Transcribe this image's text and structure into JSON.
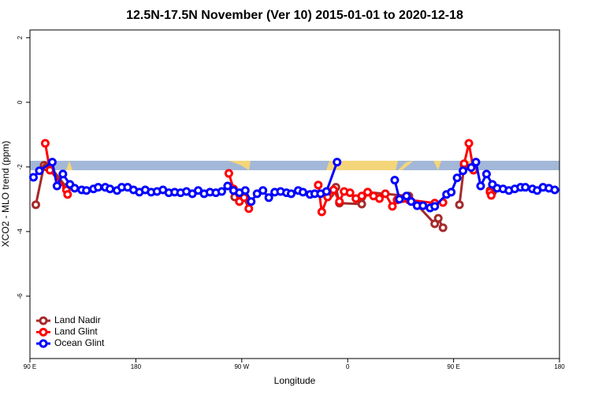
{
  "chart_data": {
    "type": "line",
    "title": "12.5N-17.5N November (Ver 10)   2015-01-01 to 2020-12-18",
    "x_label": "Longitude",
    "y_label": "XCO2 - MLO trend (ppm)",
    "xlim": [
      90,
      540
    ],
    "ylim": [
      -7.93,
      2.24
    ],
    "xticks": [
      {
        "value": 90,
        "label": "90 E"
      },
      180,
      {
        "value": 270,
        "label": "90 W"
      },
      {
        "value": 360,
        "label": "0"
      },
      {
        "value": 450,
        "label": "90 E"
      },
      {
        "value": 540,
        "label": "180"
      }
    ],
    "yticks": [
      -6,
      -4,
      -2,
      0,
      2
    ],
    "legend": "bottom-left",
    "series": [
      {
        "name": "Land Nadir",
        "color": "#a52a2a",
        "x": [
          95,
          102,
          104,
          107,
          121,
          null,
          264,
          268,
          null,
          345,
          350,
          353,
          372,
          377,
          412,
          434,
          437,
          441,
          null,
          455,
          459,
          467,
          null,
          481,
          483
        ],
        "values": [
          -3.17,
          -1.95,
          -2.0,
          -1.98,
          -2.63,
          null,
          -2.93,
          -3.07,
          null,
          -2.83,
          -2.63,
          -3.12,
          -3.15,
          -2.78,
          -2.9,
          -3.76,
          -3.59,
          -3.88,
          null,
          -3.17,
          -1.95,
          -2.05,
          null,
          -2.73,
          -2.78
        ]
      },
      {
        "name": "Land Glint",
        "color": "#ff0000",
        "x": [
          103,
          107,
          121,
          122,
          null,
          259,
          263,
          268,
          272,
          276,
          null,
          335,
          338,
          343,
          348,
          353,
          357,
          362,
          367,
          372,
          377,
          382,
          387,
          392,
          398,
          402,
          407,
          412,
          434,
          441,
          null,
          459,
          463,
          467,
          null,
          481,
          482
        ],
        "values": [
          -1.27,
          -2.1,
          -2.71,
          -2.85,
          null,
          -2.2,
          -2.68,
          -3.07,
          -2.95,
          -3.29,
          null,
          -2.56,
          -3.39,
          -2.93,
          -2.71,
          -3.07,
          -2.76,
          -2.8,
          -2.98,
          -2.9,
          -2.78,
          -2.9,
          -2.98,
          -2.83,
          -3.22,
          -3.02,
          -2.98,
          -3.02,
          -3.12,
          -3.1,
          null,
          -1.9,
          -1.27,
          -2.1,
          null,
          -2.78,
          -2.88
        ]
      },
      {
        "name": "Ocean Glint",
        "color": "#0000ff",
        "x": [
          93,
          98,
          109,
          113,
          118,
          124,
          128,
          134,
          138,
          144,
          148,
          154,
          158,
          164,
          168,
          173,
          178,
          183,
          188,
          193,
          198,
          203,
          208,
          213,
          218,
          223,
          228,
          233,
          238,
          243,
          248,
          253,
          258,
          263,
          268,
          273,
          278,
          283,
          288,
          293,
          298,
          303,
          308,
          312,
          318,
          322,
          328,
          332,
          337,
          342,
          351,
          null,
          400,
          404,
          410,
          414,
          419,
          424,
          430,
          434,
          444,
          448,
          453,
          458,
          465,
          469,
          473,
          478,
          483,
          487,
          492,
          497,
          502,
          507,
          511,
          517,
          521,
          526,
          531,
          536
        ],
        "values": [
          -2.32,
          -2.12,
          -1.85,
          -2.59,
          -2.22,
          -2.54,
          -2.66,
          -2.71,
          -2.73,
          -2.68,
          -2.63,
          -2.63,
          -2.68,
          -2.73,
          -2.63,
          -2.63,
          -2.71,
          -2.78,
          -2.71,
          -2.78,
          -2.76,
          -2.71,
          -2.8,
          -2.78,
          -2.8,
          -2.76,
          -2.83,
          -2.73,
          -2.83,
          -2.78,
          -2.8,
          -2.76,
          -2.59,
          -2.73,
          -2.8,
          -2.73,
          -3.07,
          -2.83,
          -2.73,
          -2.95,
          -2.78,
          -2.76,
          -2.8,
          -2.83,
          -2.73,
          -2.78,
          -2.85,
          -2.83,
          -2.83,
          -2.76,
          -1.85,
          null,
          -2.41,
          -3.0,
          -2.9,
          -3.07,
          -3.2,
          -3.2,
          -3.27,
          -3.22,
          -2.85,
          -2.78,
          -2.34,
          -2.12,
          -2.02,
          -1.85,
          -2.59,
          -2.22,
          -2.54,
          -2.66,
          -2.68,
          -2.73,
          -2.68,
          -2.63,
          -2.63,
          -2.68,
          -2.73,
          -2.63,
          -2.66,
          -2.71
        ]
      }
    ]
  }
}
